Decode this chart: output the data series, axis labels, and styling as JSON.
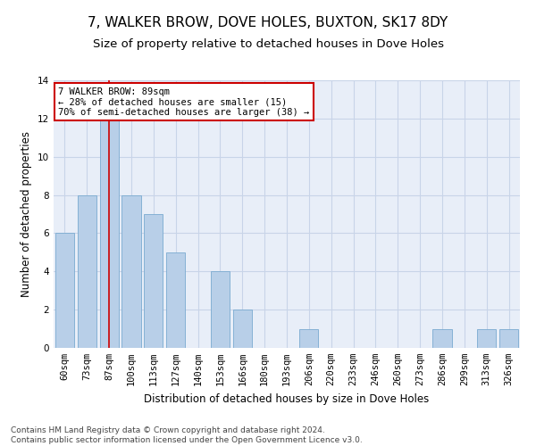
{
  "title": "7, WALKER BROW, DOVE HOLES, BUXTON, SK17 8DY",
  "subtitle": "Size of property relative to detached houses in Dove Holes",
  "xlabel": "Distribution of detached houses by size in Dove Holes",
  "ylabel": "Number of detached properties",
  "categories": [
    "60sqm",
    "73sqm",
    "87sqm",
    "100sqm",
    "113sqm",
    "127sqm",
    "140sqm",
    "153sqm",
    "166sqm",
    "180sqm",
    "193sqm",
    "206sqm",
    "220sqm",
    "233sqm",
    "246sqm",
    "260sqm",
    "273sqm",
    "286sqm",
    "299sqm",
    "313sqm",
    "326sqm"
  ],
  "values": [
    6,
    8,
    12,
    8,
    7,
    5,
    0,
    4,
    2,
    0,
    0,
    1,
    0,
    0,
    0,
    0,
    0,
    1,
    0,
    1,
    1
  ],
  "bar_color": "#b8cfe8",
  "bar_edge_color": "#7aaad0",
  "reference_line_color": "#cc0000",
  "annotation_text": "7 WALKER BROW: 89sqm\n← 28% of detached houses are smaller (15)\n70% of semi-detached houses are larger (38) →",
  "annotation_box_color": "#ffffff",
  "annotation_box_edge_color": "#cc0000",
  "ylim": [
    0,
    14
  ],
  "yticks": [
    0,
    2,
    4,
    6,
    8,
    10,
    12,
    14
  ],
  "grid_color": "#c8d4e8",
  "background_color": "#e8eef8",
  "footer_text": "Contains HM Land Registry data © Crown copyright and database right 2024.\nContains public sector information licensed under the Open Government Licence v3.0.",
  "title_fontsize": 11,
  "subtitle_fontsize": 9.5,
  "xlabel_fontsize": 8.5,
  "ylabel_fontsize": 8.5,
  "tick_fontsize": 7.5,
  "annotation_fontsize": 7.5,
  "footer_fontsize": 6.5
}
